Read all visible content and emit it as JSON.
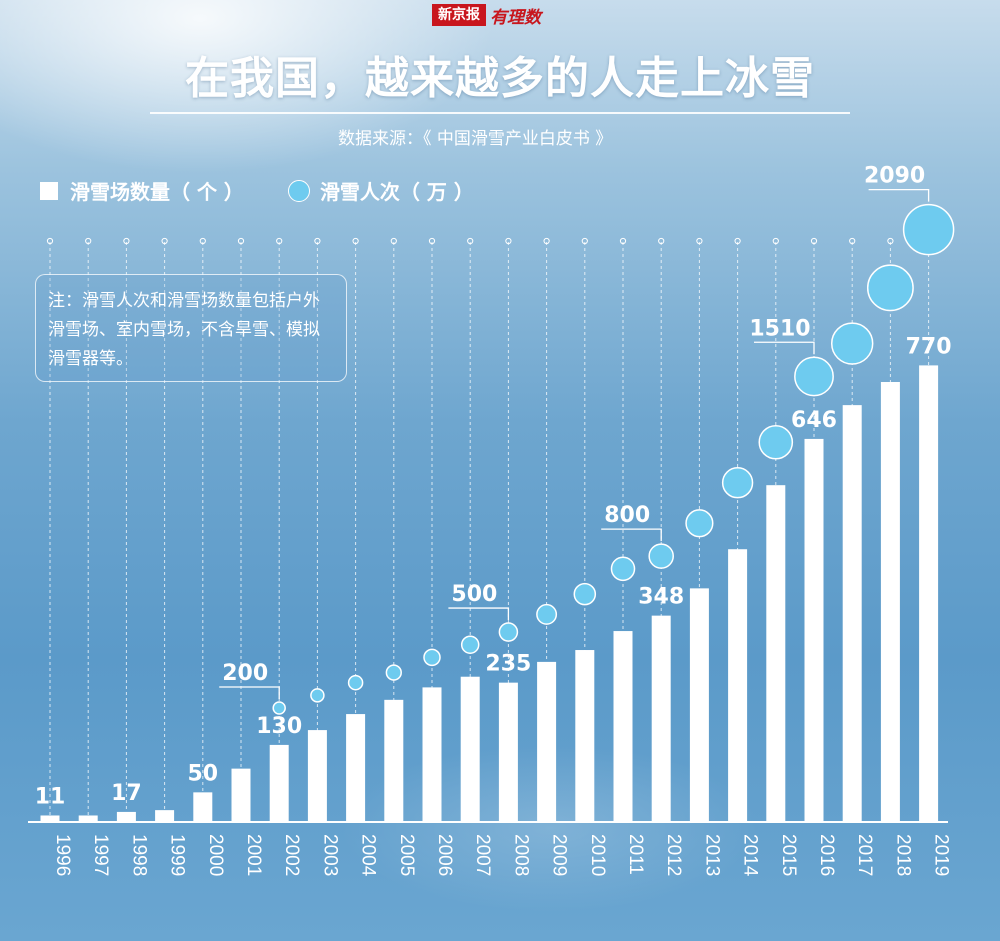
{
  "brand": {
    "name": "新京报",
    "column": "有理数"
  },
  "title": "在我国，越来越多的人走上冰雪",
  "source": "数据来源：《 中国滑雪产业白皮书 》",
  "legend": {
    "bars": "滑雪场数量（ 个 ）",
    "circles": "滑雪人次（ 万 ）"
  },
  "note": "注：滑雪人次和滑雪场数量包括户外滑雪场、室内雪场，不含旱雪、模拟滑雪器等。",
  "colors": {
    "bar": "#ffffff",
    "circle_fill": "#6ecbef",
    "circle_stroke": "#ffffff"
  },
  "chart_data": {
    "type": "bar",
    "categories": [
      "1996",
      "1997",
      "1998",
      "1999",
      "2000",
      "2001",
      "2002",
      "2003",
      "2004",
      "2005",
      "2006",
      "2007",
      "2008",
      "2009",
      "2010",
      "2011",
      "2012",
      "2013",
      "2014",
      "2015",
      "2016",
      "2017",
      "2018",
      "2019"
    ],
    "series": [
      {
        "name": "滑雪场数量（ 个 ）",
        "kind": "bar",
        "values": [
          11,
          11,
          17,
          20,
          50,
          90,
          130,
          155,
          182,
          206,
          227,
          245,
          235,
          270,
          290,
          322,
          348,
          394,
          460,
          568,
          646,
          703,
          742,
          770
        ]
      },
      {
        "name": "滑雪人次（ 万 ）",
        "kind": "bubble",
        "x": [
          "2002",
          "2003",
          "2004",
          "2005",
          "2006",
          "2007",
          "2008",
          "2009",
          "2010",
          "2011",
          "2012",
          "2013",
          "2014",
          "2015",
          "2016",
          "2017",
          "2018",
          "2019"
        ],
        "values": [
          200,
          250,
          300,
          340,
          400,
          450,
          500,
          570,
          650,
          750,
          800,
          930,
          1090,
          1250,
          1510,
          1640,
          1860,
          2090
        ]
      }
    ],
    "labels": {
      "bars": {
        "1996": "11",
        "1998": "17",
        "2000": "50",
        "2002": "130",
        "2008": "235",
        "2012": "348",
        "2016": "646",
        "2019": "770"
      },
      "circles": {
        "2002": "200",
        "2008": "500",
        "2012": "800",
        "2016": "1510",
        "2019": "2090"
      }
    },
    "ylim": [
      0,
      2200
    ]
  }
}
